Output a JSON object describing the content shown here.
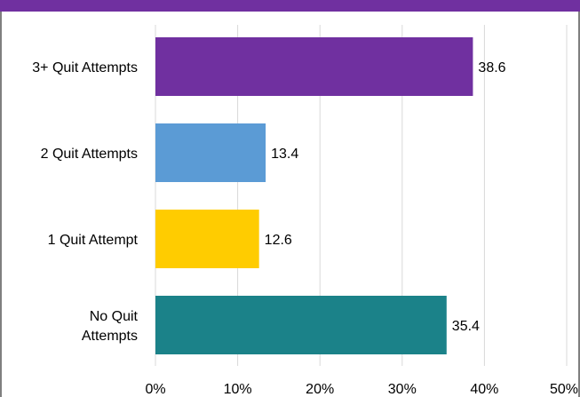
{
  "chart_data": {
    "type": "bar",
    "orientation": "horizontal",
    "categories": [
      [
        "3+ Quit Attempts"
      ],
      [
        "2 Quit Attempts"
      ],
      [
        "1 Quit Attempt"
      ],
      [
        "No Quit",
        "Attempts"
      ]
    ],
    "values": [
      38.6,
      13.4,
      12.6,
      35.4
    ],
    "value_labels": [
      "38.6",
      "13.4",
      "12.6",
      "35.4"
    ],
    "colors": [
      "#7030a0",
      "#5b9bd5",
      "#ffcc00",
      "#1b8289"
    ],
    "xlim": [
      0,
      50
    ],
    "x_ticks": [
      0,
      10,
      20,
      30,
      40,
      50
    ],
    "x_tick_labels": [
      "0%",
      "10%",
      "20%",
      "30%",
      "40%",
      "50%"
    ],
    "grid": true,
    "accent_color": "#7030a0"
  }
}
